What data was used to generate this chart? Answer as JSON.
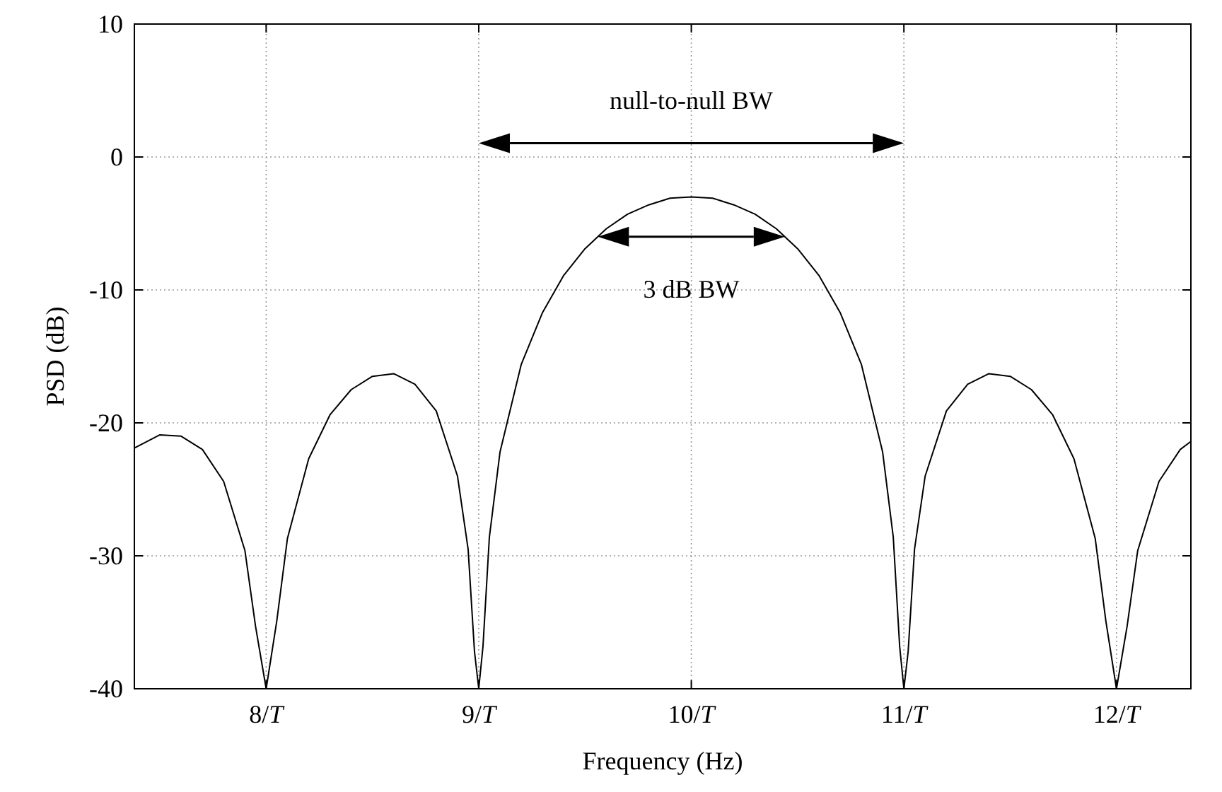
{
  "chart_data": {
    "type": "line",
    "xlabel": "Frequency (Hz)",
    "ylabel": "PSD (dB)",
    "xlim": [
      7.38,
      12.35
    ],
    "ylim": [
      -40,
      10
    ],
    "xticks": [
      {
        "value": 8,
        "label": "8/T"
      },
      {
        "value": 9,
        "label": "9/T"
      },
      {
        "value": 10,
        "label": "10/T"
      },
      {
        "value": 11,
        "label": "11/T"
      },
      {
        "value": 12,
        "label": "12/T"
      }
    ],
    "yticks": [
      -40,
      -30,
      -20,
      -10,
      0,
      10
    ],
    "grid": true,
    "marker": "none",
    "line_style": "solid",
    "series": [
      {
        "color": "#000000",
        "x": [
          7.38,
          7.5,
          7.6,
          7.7,
          7.8,
          7.9,
          7.95,
          8,
          8.05,
          8.1,
          8.2,
          8.3,
          8.4,
          8.5,
          8.6,
          8.7,
          8.8,
          8.9,
          8.95,
          8.98,
          9,
          9.02,
          9.05,
          9.1,
          9.2,
          9.3,
          9.4,
          9.5,
          9.6,
          9.7,
          9.8,
          9.9,
          10,
          10.1,
          10.2,
          10.3,
          10.4,
          10.5,
          10.6,
          10.7,
          10.8,
          10.9,
          10.95,
          10.98,
          11,
          11.02,
          11.05,
          11.1,
          11.2,
          11.3,
          11.4,
          11.5,
          11.6,
          11.7,
          11.8,
          11.9,
          11.95,
          12,
          12.05,
          12.1,
          12.2,
          12.3,
          12.35
        ],
        "values": [
          -21.9,
          -20.9,
          -21,
          -22,
          -24.4,
          -29.6,
          -35.3,
          -40,
          -34.9,
          -28.7,
          -22.7,
          -19.4,
          -17.5,
          -16.5,
          -16.3,
          -17.1,
          -19.1,
          -24,
          -29.5,
          -37.2,
          -40,
          -36.8,
          -28.6,
          -22.2,
          -15.6,
          -11.7,
          -8.9,
          -6.9,
          -5.4,
          -4.3,
          -3.6,
          -3.1,
          -3,
          -3.1,
          -3.6,
          -4.3,
          -5.4,
          -6.9,
          -8.9,
          -11.7,
          -15.6,
          -22.2,
          -28.6,
          -36.8,
          -40,
          -37.2,
          -29.5,
          -24,
          -19.1,
          -17.1,
          -16.3,
          -16.5,
          -17.5,
          -19.4,
          -22.7,
          -28.7,
          -34.9,
          -40,
          -35.3,
          -29.6,
          -24.4,
          -22,
          -21.4
        ]
      }
    ],
    "annotations": [
      "null-to-null BW",
      "3 dB BW"
    ]
  }
}
